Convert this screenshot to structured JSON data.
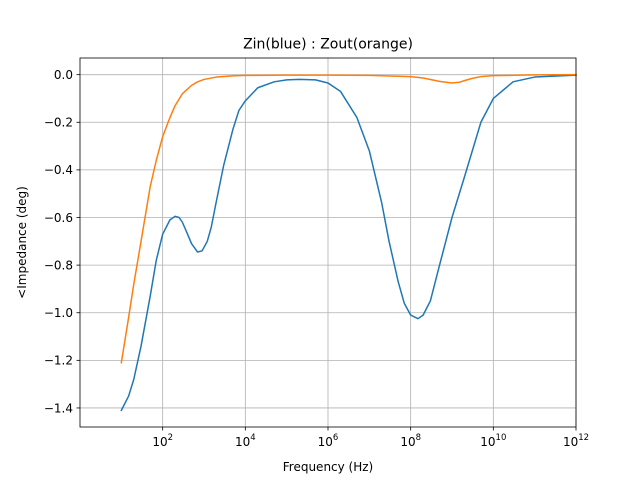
{
  "chart_data": {
    "type": "line",
    "title": "Zin(blue) : Zout(orange)",
    "xlabel": "Frequency (Hz)",
    "ylabel": "<Impedance (deg)",
    "xscale": "log",
    "xlim": [
      1.0,
      1000000000000.0
    ],
    "ylim": [
      -1.48,
      0.07
    ],
    "grid": true,
    "x_ticks": [
      {
        "base": "10",
        "exp": "2",
        "value": 100
      },
      {
        "base": "10",
        "exp": "4",
        "value": 10000
      },
      {
        "base": "10",
        "exp": "6",
        "value": 1000000
      },
      {
        "base": "10",
        "exp": "8",
        "value": 100000000
      },
      {
        "base": "10",
        "exp": "10",
        "value": 10000000000
      },
      {
        "base": "10",
        "exp": "12",
        "value": 1000000000000
      }
    ],
    "y_ticks": [
      {
        "label": "0.0",
        "value": 0.0
      },
      {
        "label": "−0.2",
        "value": -0.2
      },
      {
        "label": "−0.4",
        "value": -0.4
      },
      {
        "label": "−0.6",
        "value": -0.6
      },
      {
        "label": "−0.8",
        "value": -0.8
      },
      {
        "label": "−1.0",
        "value": -1.0
      },
      {
        "label": "−1.2",
        "value": -1.2
      },
      {
        "label": "−1.4",
        "value": -1.4
      }
    ],
    "series": [
      {
        "color": "#1f77b4",
        "x": [
          10,
          15,
          20,
          30,
          50,
          70,
          100,
          150,
          200,
          250,
          300,
          400,
          500,
          700,
          900,
          1200,
          1500,
          2000,
          3000,
          5000,
          7000,
          10000,
          20000,
          50000,
          100000,
          200000,
          500000,
          1000000,
          2000000,
          5000000,
          10000000,
          20000000,
          30000000,
          50000000,
          70000000,
          100000000,
          150000000,
          200000000,
          300000000,
          500000000,
          1000000000,
          2000000000,
          5000000000,
          10000000000,
          30000000000,
          100000000000,
          1000000000000
        ],
        "y": [
          -1.41,
          -1.35,
          -1.28,
          -1.14,
          -0.93,
          -0.78,
          -0.67,
          -0.61,
          -0.595,
          -0.6,
          -0.62,
          -0.67,
          -0.71,
          -0.745,
          -0.74,
          -0.7,
          -0.64,
          -0.53,
          -0.38,
          -0.23,
          -0.15,
          -0.11,
          -0.055,
          -0.03,
          -0.022,
          -0.02,
          -0.022,
          -0.035,
          -0.07,
          -0.18,
          -0.32,
          -0.54,
          -0.7,
          -0.87,
          -0.96,
          -1.01,
          -1.025,
          -1.01,
          -0.95,
          -0.8,
          -0.6,
          -0.43,
          -0.2,
          -0.1,
          -0.03,
          -0.01,
          -0.002
        ]
      },
      {
        "color": "#ff7f0e",
        "x": [
          10,
          15,
          20,
          30,
          50,
          70,
          100,
          150,
          200,
          300,
          500,
          700,
          1000,
          2000,
          5000,
          10000,
          100000,
          1000000,
          10000000,
          100000000,
          200000000,
          500000000,
          1000000000,
          1500000000,
          2000000000,
          3000000000,
          5000000000,
          10000000000,
          100000000000,
          1000000000000
        ],
        "y": [
          -1.21,
          -1.02,
          -0.88,
          -0.7,
          -0.47,
          -0.36,
          -0.26,
          -0.18,
          -0.13,
          -0.08,
          -0.045,
          -0.03,
          -0.02,
          -0.01,
          -0.005,
          -0.003,
          -0.002,
          -0.002,
          -0.003,
          -0.008,
          -0.014,
          -0.028,
          -0.035,
          -0.032,
          -0.025,
          -0.016,
          -0.008,
          -0.004,
          -0.001,
          0.0
        ]
      }
    ]
  }
}
